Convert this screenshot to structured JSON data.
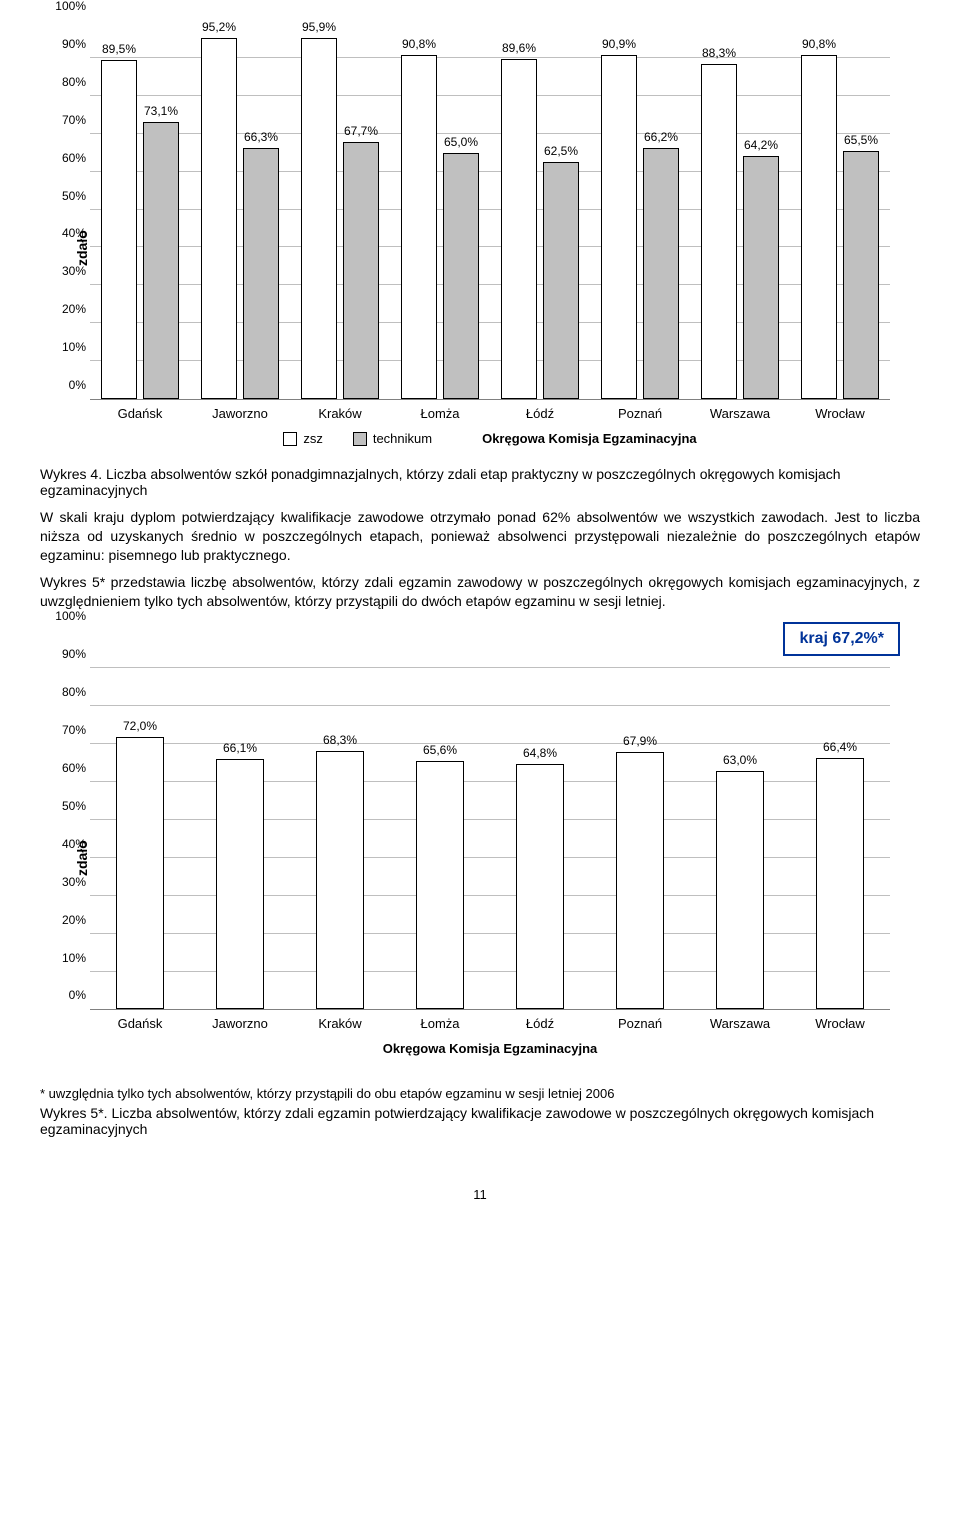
{
  "chart1": {
    "type": "bar",
    "y_label": "zdało",
    "categories": [
      "Gdańsk",
      "Jaworzno",
      "Kraków",
      "Łomża",
      "Łódź",
      "Poznań",
      "Warszawa",
      "Wrocław"
    ],
    "series": [
      {
        "name": "zsz",
        "color": "#ffffff",
        "values": [
          89.5,
          95.2,
          95.9,
          90.8,
          89.6,
          90.9,
          88.3,
          90.8
        ],
        "labels": [
          "89,5%",
          "95,2%",
          "95,9%",
          "90,8%",
          "89,6%",
          "90,9%",
          "88,3%",
          "90,8%"
        ]
      },
      {
        "name": "technikum",
        "color": "#c0c0c0",
        "values": [
          73.1,
          66.3,
          67.7,
          65.0,
          62.5,
          66.2,
          64.2,
          65.5
        ],
        "labels": [
          "73,1%",
          "66,3%",
          "67,7%",
          "65,0%",
          "62,5%",
          "66,2%",
          "64,2%",
          "65,5%"
        ]
      }
    ],
    "y_ticks": [
      0,
      10,
      20,
      30,
      40,
      50,
      60,
      70,
      80,
      90,
      100
    ],
    "y_tick_labels": [
      "0%",
      "10%",
      "20%",
      "30%",
      "40%",
      "50%",
      "60%",
      "70%",
      "80%",
      "90%",
      "100%"
    ],
    "y_max": 100,
    "legend_zsz": "zsz",
    "legend_tech": "technikum",
    "x_axis_title": "Okręgowa Komisja Egzaminacyjna",
    "bar_border": "#000000",
    "grid_color": "#808080"
  },
  "caption1": "Wykres 4. Liczba absolwentów szkół ponadgimnazjalnych, którzy zdali etap praktyczny w poszczególnych okręgowych komisjach egzaminacyjnych",
  "para1": "W skali kraju dyplom potwierdzający kwalifikacje zawodowe otrzymało ponad 62% absolwentów we wszystkich zawodach. Jest to liczba niższa od uzyskanych średnio w poszczególnych etapach, ponieważ absolwenci przystępowali niezależnie do poszczególnych etapów egzaminu: pisemnego lub praktycznego.",
  "para2": "Wykres 5* przedstawia liczbę absolwentów, którzy zdali egzamin zawodowy w poszczególnych okręgowych komisjach egzaminacyjnych, z uwzględnieniem tylko tych absolwentów, którzy przystąpili do dwóch etapów egzaminu w sesji letniej.",
  "chart2": {
    "type": "bar",
    "y_label": "zdało",
    "categories": [
      "Gdańsk",
      "Jaworzno",
      "Kraków",
      "Łomża",
      "Łódź",
      "Poznań",
      "Warszawa",
      "Wrocław"
    ],
    "series": [
      {
        "name": "",
        "color": "#ffffff",
        "values": [
          72.0,
          66.1,
          68.3,
          65.6,
          64.8,
          67.9,
          63.0,
          66.4
        ],
        "labels": [
          "72,0%",
          "66,1%",
          "68,3%",
          "65,6%",
          "64,8%",
          "67,9%",
          "63,0%",
          "66,4%"
        ]
      }
    ],
    "y_ticks": [
      0,
      10,
      20,
      30,
      40,
      50,
      60,
      70,
      80,
      90,
      100
    ],
    "y_tick_labels": [
      "0%",
      "10%",
      "20%",
      "30%",
      "40%",
      "50%",
      "60%",
      "70%",
      "80%",
      "90%",
      "100%"
    ],
    "y_max": 100,
    "x_axis_title": "Okręgowa Komisja Egzaminacyjna",
    "kraj_label": "kraj  67,2%*",
    "bar_border": "#000000",
    "grid_color": "#808080",
    "kraj_border": "#003399",
    "kraj_color": "#003399"
  },
  "footnote": "* uwzględnia tylko tych absolwentów, którzy przystąpili do obu etapów egzaminu w sesji letniej 2006",
  "caption2": "Wykres 5*. Liczba absolwentów, którzy zdali egzamin potwierdzający kwalifikacje zawodowe w poszczególnych okręgowych komisjach egzaminacyjnych",
  "page_number": "11"
}
